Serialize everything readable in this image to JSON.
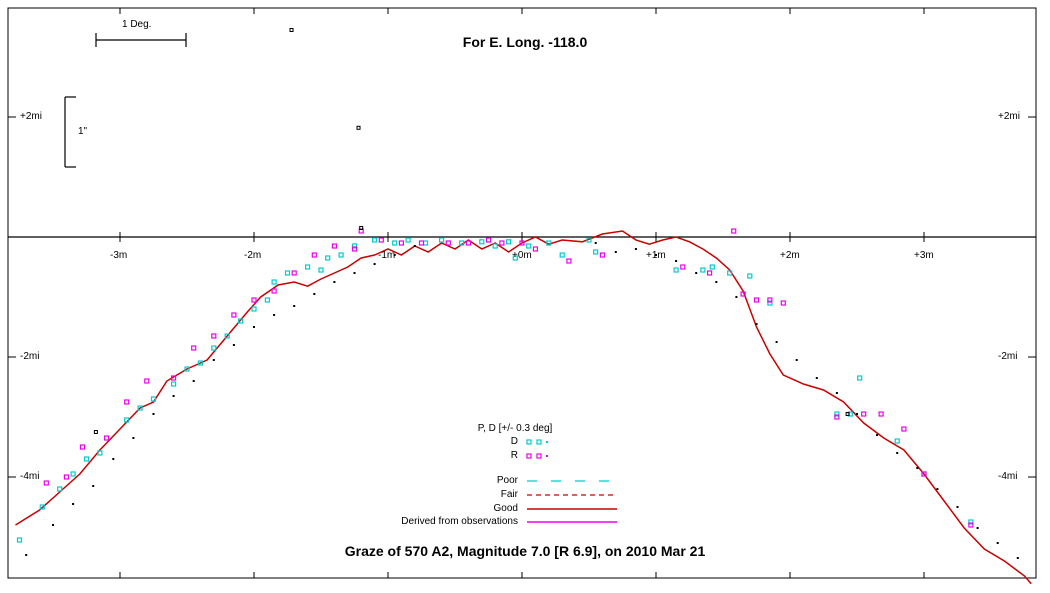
{
  "chart_data": {
    "type": "scatter",
    "title": "Graze of  570 A2,  Magnitude 7.0 [R 6.9],  on 2010 Mar 21",
    "subtitle": "For E. Long. -118.0",
    "x_ticks": [
      "-3m",
      "-2m",
      "-1m",
      "+0m",
      "+1m",
      "+2m",
      "+3m"
    ],
    "y_ticks_left": [
      "+2mi",
      "-2mi",
      "-4mi"
    ],
    "y_ticks_right": [
      "+2mi",
      "-2mi",
      "-4mi"
    ],
    "xlim": [
      -3.8,
      3.8
    ],
    "ylim": [
      -5.8,
      3.9
    ],
    "scale_bar_h": "1 Deg.",
    "scale_bar_v": "1\"",
    "legend": {
      "heading": "P, D [+/- 0.3 deg]",
      "d_label": "D",
      "r_label": "R",
      "lines": [
        {
          "label": "Poor",
          "color": "#00cccc",
          "style": "dash-long"
        },
        {
          "label": "Fair",
          "color": "#cc0000",
          "style": "dash"
        },
        {
          "label": "Good",
          "color": "#cc0000",
          "style": "solid"
        },
        {
          "label": "Derived from observations",
          "color": "#ee00ee",
          "style": "solid"
        }
      ]
    },
    "colors": {
      "d": "#00cccc",
      "r": "#ee00ee",
      "profile": "#cc0000",
      "dots": "#000000"
    },
    "profile": [
      [
        -3.78,
        -4.8
      ],
      [
        -3.6,
        -4.55
      ],
      [
        -3.45,
        -4.25
      ],
      [
        -3.3,
        -3.95
      ],
      [
        -3.15,
        -3.55
      ],
      [
        -3.0,
        -3.2
      ],
      [
        -2.85,
        -2.85
      ],
      [
        -2.75,
        -2.75
      ],
      [
        -2.65,
        -2.4
      ],
      [
        -2.5,
        -2.2
      ],
      [
        -2.35,
        -2.05
      ],
      [
        -2.2,
        -1.65
      ],
      [
        -2.05,
        -1.25
      ],
      [
        -1.95,
        -1.0
      ],
      [
        -1.82,
        -0.8
      ],
      [
        -1.7,
        -0.75
      ],
      [
        -1.6,
        -0.82
      ],
      [
        -1.5,
        -0.7
      ],
      [
        -1.4,
        -0.6
      ],
      [
        -1.3,
        -0.5
      ],
      [
        -1.2,
        -0.35
      ],
      [
        -1.1,
        -0.3
      ],
      [
        -1.0,
        -0.2
      ],
      [
        -0.9,
        -0.3
      ],
      [
        -0.8,
        -0.15
      ],
      [
        -0.7,
        -0.25
      ],
      [
        -0.6,
        -0.1
      ],
      [
        -0.5,
        -0.2
      ],
      [
        -0.4,
        -0.05
      ],
      [
        -0.3,
        -0.2
      ],
      [
        -0.2,
        -0.1
      ],
      [
        -0.1,
        -0.25
      ],
      [
        0.0,
        -0.1
      ],
      [
        0.1,
        0.0
      ],
      [
        0.2,
        -0.12
      ],
      [
        0.3,
        -0.05
      ],
      [
        0.45,
        -0.08
      ],
      [
        0.6,
        0.05
      ],
      [
        0.75,
        0.1
      ],
      [
        0.85,
        -0.05
      ],
      [
        0.95,
        -0.12
      ],
      [
        1.05,
        -0.05
      ],
      [
        1.15,
        0.0
      ],
      [
        1.25,
        -0.08
      ],
      [
        1.35,
        -0.2
      ],
      [
        1.45,
        -0.35
      ],
      [
        1.55,
        -0.55
      ],
      [
        1.65,
        -0.9
      ],
      [
        1.75,
        -1.5
      ],
      [
        1.85,
        -1.95
      ],
      [
        1.95,
        -2.3
      ],
      [
        2.1,
        -2.45
      ],
      [
        2.25,
        -2.55
      ],
      [
        2.4,
        -2.75
      ],
      [
        2.55,
        -3.1
      ],
      [
        2.7,
        -3.35
      ],
      [
        2.85,
        -3.55
      ],
      [
        3.0,
        -3.95
      ],
      [
        3.15,
        -4.4
      ],
      [
        3.3,
        -4.85
      ],
      [
        3.45,
        -5.2
      ],
      [
        3.6,
        -5.4
      ],
      [
        3.75,
        -5.65
      ],
      [
        3.8,
        -5.78
      ]
    ],
    "dots_series": [
      [
        -3.7,
        -5.3
      ],
      [
        -3.5,
        -4.8
      ],
      [
        -3.35,
        -4.45
      ],
      [
        -3.2,
        -4.15
      ],
      [
        -3.05,
        -3.7
      ],
      [
        -2.9,
        -3.35
      ],
      [
        -2.75,
        -2.95
      ],
      [
        -2.6,
        -2.65
      ],
      [
        -2.45,
        -2.4
      ],
      [
        -2.3,
        -2.05
      ],
      [
        -2.15,
        -1.8
      ],
      [
        -2.0,
        -1.5
      ],
      [
        -1.85,
        -1.3
      ],
      [
        -1.7,
        -1.15
      ],
      [
        -1.55,
        -0.95
      ],
      [
        -1.4,
        -0.75
      ],
      [
        -1.25,
        -0.6
      ],
      [
        -1.1,
        -0.45
      ],
      [
        -0.95,
        -0.3
      ],
      [
        -0.8,
        -0.15
      ],
      [
        0.55,
        -0.1
      ],
      [
        0.7,
        -0.25
      ],
      [
        0.85,
        -0.2
      ],
      [
        1.0,
        -0.3
      ],
      [
        1.15,
        -0.4
      ],
      [
        1.3,
        -0.6
      ],
      [
        1.45,
        -0.75
      ],
      [
        1.6,
        -1.0
      ],
      [
        1.75,
        -1.45
      ],
      [
        1.9,
        -1.75
      ],
      [
        2.05,
        -2.05
      ],
      [
        2.2,
        -2.35
      ],
      [
        2.35,
        -2.6
      ],
      [
        2.5,
        -2.95
      ],
      [
        2.65,
        -3.3
      ],
      [
        2.8,
        -3.6
      ],
      [
        2.95,
        -3.85
      ],
      [
        3.1,
        -4.2
      ],
      [
        3.25,
        -4.5
      ],
      [
        3.4,
        -4.85
      ],
      [
        3.55,
        -5.1
      ],
      [
        3.7,
        -5.35
      ]
    ],
    "d_points": [
      [
        -3.75,
        -5.05
      ],
      [
        -3.58,
        -4.5
      ],
      [
        -3.45,
        -4.2
      ],
      [
        -3.35,
        -3.95
      ],
      [
        -3.25,
        -3.7
      ],
      [
        -3.15,
        -3.6
      ],
      [
        -2.95,
        -3.05
      ],
      [
        -2.85,
        -2.85
      ],
      [
        -2.75,
        -2.7
      ],
      [
        -2.6,
        -2.45
      ],
      [
        -2.5,
        -2.2
      ],
      [
        -2.4,
        -2.1
      ],
      [
        -2.3,
        -1.85
      ],
      [
        -2.2,
        -1.65
      ],
      [
        -2.1,
        -1.4
      ],
      [
        -2.0,
        -1.2
      ],
      [
        -1.9,
        -1.05
      ],
      [
        -1.85,
        -0.75
      ],
      [
        -1.75,
        -0.6
      ],
      [
        -1.6,
        -0.5
      ],
      [
        -1.5,
        -0.55
      ],
      [
        -1.45,
        -0.35
      ],
      [
        -1.35,
        -0.3
      ],
      [
        -1.25,
        -0.15
      ],
      [
        -1.1,
        -0.05
      ],
      [
        -0.95,
        -0.1
      ],
      [
        -0.85,
        -0.05
      ],
      [
        -0.72,
        -0.1
      ],
      [
        -0.6,
        -0.05
      ],
      [
        -0.45,
        -0.1
      ],
      [
        -0.3,
        -0.08
      ],
      [
        -0.2,
        -0.15
      ],
      [
        -0.1,
        -0.08
      ],
      [
        -0.05,
        -0.35
      ],
      [
        0.05,
        -0.15
      ],
      [
        0.2,
        -0.1
      ],
      [
        0.3,
        -0.3
      ],
      [
        0.5,
        -0.05
      ],
      [
        0.55,
        -0.25
      ],
      [
        1.15,
        -0.55
      ],
      [
        1.35,
        -0.55
      ],
      [
        1.42,
        -0.5
      ],
      [
        1.55,
        -0.6
      ],
      [
        1.7,
        -0.65
      ],
      [
        1.85,
        -1.1
      ],
      [
        2.35,
        -2.95
      ],
      [
        2.45,
        -2.95
      ],
      [
        2.52,
        -2.35
      ],
      [
        2.8,
        -3.4
      ],
      [
        3.0,
        -3.95
      ],
      [
        3.35,
        -4.75
      ]
    ],
    "r_points": [
      [
        -3.55,
        -4.1
      ],
      [
        -3.4,
        -4.0
      ],
      [
        -3.28,
        -3.5
      ],
      [
        -3.1,
        -3.35
      ],
      [
        -2.95,
        -2.75
      ],
      [
        -2.8,
        -2.4
      ],
      [
        -2.6,
        -2.35
      ],
      [
        -2.45,
        -1.85
      ],
      [
        -2.3,
        -1.65
      ],
      [
        -2.15,
        -1.3
      ],
      [
        -2.0,
        -1.05
      ],
      [
        -1.85,
        -0.9
      ],
      [
        -1.7,
        -0.6
      ],
      [
        -1.55,
        -0.3
      ],
      [
        -1.4,
        -0.15
      ],
      [
        -1.25,
        -0.2
      ],
      [
        -1.2,
        0.1
      ],
      [
        -1.05,
        -0.05
      ],
      [
        -0.9,
        -0.1
      ],
      [
        -0.75,
        -0.1
      ],
      [
        -0.55,
        -0.1
      ],
      [
        -0.4,
        -0.1
      ],
      [
        -0.25,
        -0.05
      ],
      [
        -0.15,
        -0.1
      ],
      [
        0.0,
        -0.1
      ],
      [
        0.1,
        -0.2
      ],
      [
        0.35,
        -0.4
      ],
      [
        0.6,
        -0.3
      ],
      [
        1.2,
        -0.5
      ],
      [
        1.4,
        -0.6
      ],
      [
        1.65,
        -0.95
      ],
      [
        1.75,
        -1.05
      ],
      [
        1.85,
        -1.05
      ],
      [
        1.95,
        -1.1
      ],
      [
        1.58,
        0.1
      ],
      [
        2.35,
        -3.0
      ],
      [
        2.55,
        -2.95
      ],
      [
        2.68,
        -2.95
      ],
      [
        2.85,
        -3.2
      ],
      [
        3.0,
        -3.95
      ],
      [
        3.35,
        -4.8
      ]
    ],
    "black_points": [
      [
        -3.18,
        -3.25
      ],
      [
        -1.2,
        0.15
      ],
      [
        2.43,
        -2.95
      ],
      [
        -1.72,
        3.45
      ],
      [
        -1.22,
        1.82
      ]
    ]
  }
}
